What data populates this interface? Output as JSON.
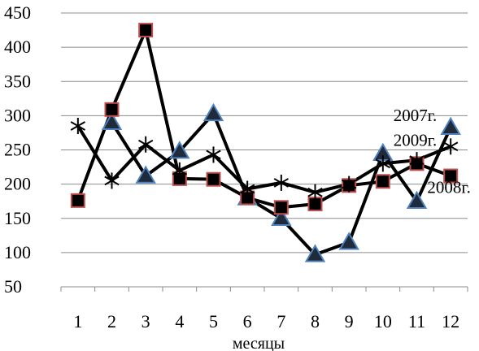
{
  "chart_data": {
    "type": "line",
    "title": "",
    "xlabel": "месяцы",
    "ylabel": "",
    "ylim": [
      50,
      450
    ],
    "yticks": [
      50,
      100,
      150,
      200,
      250,
      300,
      350,
      400,
      450
    ],
    "categories": [
      "1",
      "2",
      "3",
      "4",
      "5",
      "6",
      "7",
      "8",
      "9",
      "10",
      "11",
      "12"
    ],
    "grid": "horizontal",
    "series": [
      {
        "name": "2007г.",
        "marker": "triangle",
        "marker_fill": "#1f2b3a",
        "marker_edge": "#4f81bd",
        "values": [
          null,
          290,
          212,
          248,
          303,
          180,
          150,
          97,
          115,
          245,
          175,
          283
        ]
      },
      {
        "name": "2008г.",
        "marker": "square",
        "marker_fill": "#000000",
        "marker_edge": "#c0504d",
        "values": [
          176,
          309,
          425,
          208,
          207,
          180,
          166,
          171,
          198,
          204,
          230,
          212
        ]
      },
      {
        "name": "2009г.",
        "marker": "star",
        "marker_fill": "#000000",
        "marker_edge": "#000000",
        "values": [
          285,
          205,
          258,
          220,
          243,
          193,
          202,
          188,
          200,
          230,
          235,
          255
        ]
      }
    ],
    "annotations": [
      {
        "text": "2007г.",
        "anchor_month": 11,
        "anchor_value": 292
      },
      {
        "text": "2009г.",
        "anchor_month": 11,
        "anchor_value": 256
      },
      {
        "text": "2008г.",
        "anchor_month": 12,
        "anchor_value": 187
      }
    ]
  }
}
